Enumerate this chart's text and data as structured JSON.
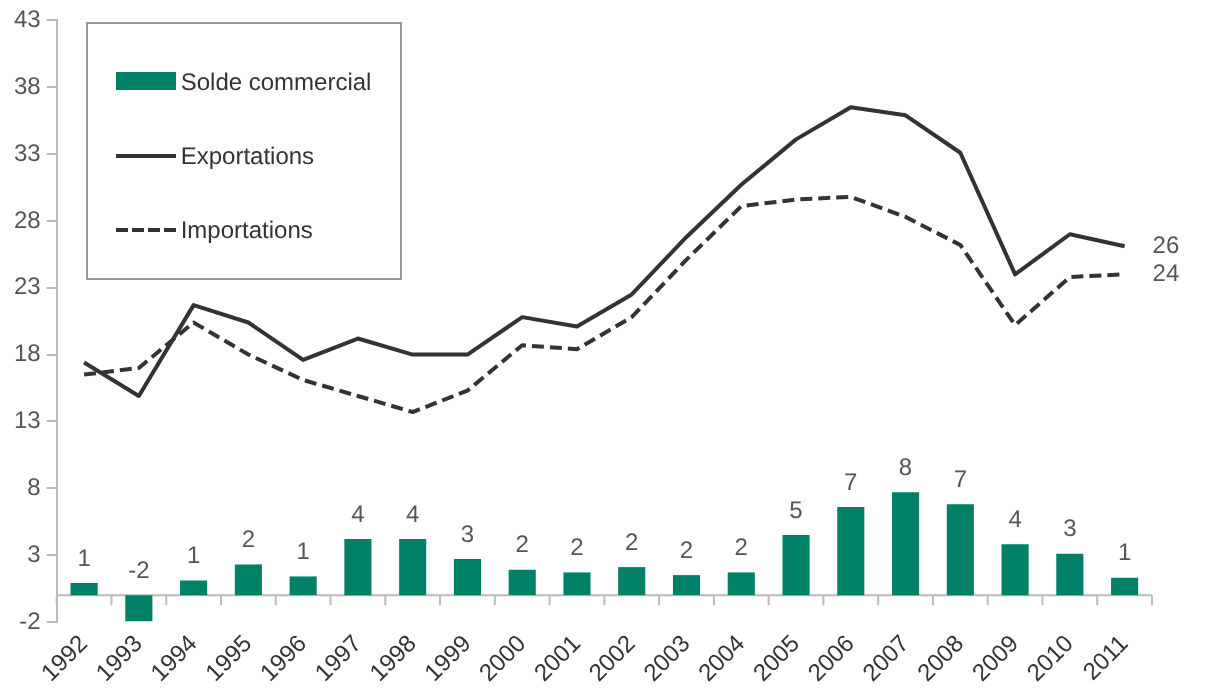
{
  "chart_data": {
    "type": "bar",
    "categories": [
      "1992",
      "1993",
      "1994",
      "1995",
      "1996",
      "1997",
      "1998",
      "1999",
      "2000",
      "2001",
      "2002",
      "2003",
      "2004",
      "2005",
      "2006",
      "2007",
      "2008",
      "2009",
      "2010",
      "2011"
    ],
    "series": [
      {
        "name": "Solde commercial",
        "color": "#008066",
        "values": [
          0.9,
          -1.95,
          1.1,
          2.3,
          1.4,
          4.2,
          4.2,
          2.7,
          1.9,
          1.7,
          2.1,
          1.5,
          1.7,
          4.5,
          6.6,
          7.7,
          6.8,
          3.8,
          3.1,
          1.3
        ],
        "value_labels": [
          "1",
          "-2",
          "1",
          "2",
          "1",
          "4",
          "4",
          "3",
          "2",
          "2",
          "2",
          "2",
          "2",
          "5",
          "7",
          "8",
          "7",
          "4",
          "3",
          "1"
        ]
      },
      {
        "name": "Exportations",
        "type": "line",
        "color": "#333333",
        "line_style": "solid",
        "values": [
          17.4,
          14.9,
          21.7,
          20.4,
          17.6,
          19.2,
          18,
          18,
          20.8,
          20.1,
          22.5,
          26.8,
          30.7,
          34.1,
          36.5,
          35.9,
          33.1,
          24,
          27,
          26.1
        ]
      },
      {
        "name": "Importations",
        "type": "line",
        "color": "#333333",
        "line_style": "dashed",
        "values": [
          16.5,
          17,
          20.4,
          18,
          16.1,
          14.9,
          13.7,
          15.3,
          18.7,
          18.4,
          20.8,
          25.1,
          29.1,
          29.6,
          29.8,
          28.3,
          26.2,
          20.2,
          23.8,
          24
        ]
      }
    ],
    "annotations": [
      {
        "text": "26",
        "x": "2011",
        "y": 26.1
      },
      {
        "text": "24",
        "x": "2011",
        "y": 24
      }
    ],
    "ylim": [
      -2,
      43
    ],
    "yticks": [
      -2,
      3,
      8,
      13,
      18,
      23,
      28,
      33,
      38,
      43
    ],
    "grid": false,
    "legend": "top left",
    "marker": "none"
  }
}
